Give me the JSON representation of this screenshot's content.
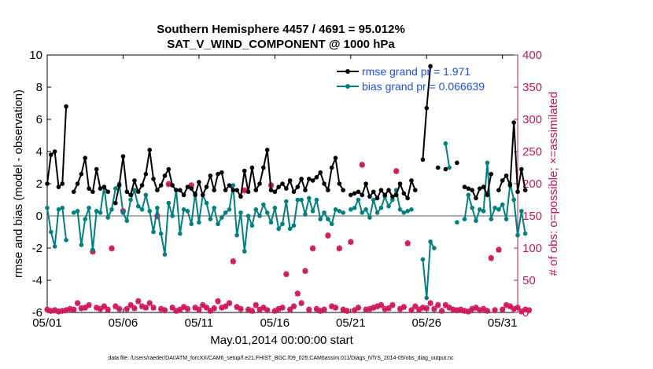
{
  "chart_data": {
    "type": "line",
    "title_line1": "Southern Hemisphere 4457 / 4691 = 95.012%",
    "title_line2": "SAT_V_WIND_COMPONENT @ 1000 hPa",
    "xlabel": "May.01,2014 00:00:00 start",
    "ylabel_left": "rmse and bias (model - observation)",
    "ylabel_right": "# of obs: o=possible; ×=assimilated",
    "footer": "data file: /Users/raeder/DAI/ATM_forcXX/CAM6_setup/f.e21.FHIST_BGC.f09_025.CAM6assim.011/Diags_NTrS_2014-05/obs_diag_output.nc",
    "xlim": [
      1,
      32
    ],
    "ylim_left": [
      -6,
      10
    ],
    "ylim_right": [
      0,
      400
    ],
    "x_ticks": [
      1,
      6,
      11,
      16,
      21,
      26,
      31
    ],
    "x_tick_labels": [
      "05/01",
      "05/06",
      "05/11",
      "05/16",
      "05/21",
      "05/26",
      "05/31"
    ],
    "y_left_ticks": [
      -6,
      -4,
      -2,
      0,
      2,
      4,
      6,
      8,
      10
    ],
    "y_right_ticks": [
      0,
      50,
      100,
      150,
      200,
      250,
      300,
      350,
      400
    ],
    "legend": [
      {
        "name": "rmse",
        "label": "rmse grand pr = 1.971"
      },
      {
        "name": "bias",
        "label": "bias grand pr = 0.066639"
      }
    ],
    "colors": {
      "rmse": "#000000",
      "bias": "#00807f",
      "obs": "#d01a5c",
      "zero": "#b0b0b0",
      "right_axis": "#c8175a"
    },
    "x_start": 1,
    "x_step": 0.25,
    "series": [
      {
        "name": "rmse",
        "axis": "left",
        "values": [
          2.0,
          3.8,
          4.0,
          1.8,
          2.0,
          6.8,
          null,
          1.5,
          2.0,
          2.6,
          3.6,
          1.7,
          1.5,
          2.9,
          1.7,
          1.8,
          1.5,
          null,
          0.8,
          1.9,
          3.7,
          1.5,
          1.3,
          2.2,
          1.5,
          1.9,
          2.6,
          4.1,
          2.3,
          1.6,
          1.9,
          2.5,
          2.9,
          1.9,
          1.6,
          1.6,
          1.3,
          1.8,
          1.7,
          1.3,
          2.1,
          1.3,
          1.8,
          2.5,
          1.6,
          2.6,
          2.7,
          1.6,
          1.9,
          1.6,
          1.6,
          1.2,
          2.8,
          1.5,
          3.0,
          1.6,
          2.0,
          3.0,
          4.1,
          1.6,
          1.5,
          1.8,
          2.0,
          1.7,
          2.2,
          1.5,
          1.8,
          2.3,
          1.6,
          2.3,
          2.2,
          2.4,
          2.7,
          2.0,
          1.6,
          3.0,
          3.6,
          2.0,
          1.6,
          null,
          1.3,
          1.4,
          1.5,
          1.3,
          2.0,
          1.2,
          1.5,
          1.1,
          1.6,
          1.3,
          1.6,
          1.2,
          1.3,
          2.0,
          1.4,
          1.1,
          2.2,
          1.6,
          null,
          3.5,
          6.7,
          9.3,
          null,
          3.0,
          null,
          2.9,
          null,
          null,
          3.3,
          null,
          1.8,
          1.7,
          1.6,
          1.1,
          1.7,
          1.8,
          1.3,
          2.6,
          null,
          1.6,
          2.2,
          2.5,
          1.9,
          5.8,
          1.5,
          2.9,
          1.6
        ]
      },
      {
        "name": "bias",
        "axis": "left",
        "values": [
          0.5,
          -1.0,
          -1.9,
          0.4,
          0.5,
          -1.5,
          null,
          0.2,
          0.3,
          -1.8,
          -0.2,
          0.5,
          -2.1,
          0.3,
          0.2,
          1.8,
          -0.1,
          0.4,
          1.7,
          2.0,
          0.2,
          -0.3,
          1.0,
          1.6,
          0.6,
          0.4,
          1.3,
          0.3,
          -1.0,
          0.5,
          -1.1,
          -2.4,
          0.8,
          0.0,
          1.6,
          -1.1,
          0.4,
          0.3,
          -0.5,
          1.4,
          -0.4,
          1.3,
          0.8,
          -0.2,
          0.5,
          -0.5,
          -0.1,
          0.2,
          0.4,
          1.9,
          -1.2,
          0.2,
          -2.2,
          0.0,
          -0.6,
          0.4,
          0.0,
          0.7,
          0.2,
          -0.4,
          0.5,
          -0.8,
          -0.5,
          0.9,
          -0.8,
          -0.6,
          1.0,
          1.0,
          0.1,
          1.1,
          0.3,
          1.0,
          -0.2,
          0.2,
          -0.2,
          -0.5,
          0.4,
          0.3,
          0.2,
          null,
          0.4,
          0.5,
          1.0,
          0.2,
          0.4,
          -0.1,
          1.0,
          0.2,
          0.5,
          1.2,
          0.6,
          1.0,
          1.6,
          0.4,
          0.2,
          0.3,
          0.4,
          null,
          null,
          -2.7,
          -5.1,
          -1.6,
          -2.0,
          null,
          null,
          4.5,
          3.0,
          null,
          -0.4,
          null,
          -0.2,
          1.3,
          0.5,
          -0.3,
          0.4,
          0.3,
          3.3,
          -0.2,
          0.5,
          0.4,
          0.7,
          -0.2,
          2.0,
          1.0,
          -1.2,
          0.3,
          -1.1
        ]
      },
      {
        "name": "possible",
        "axis": "right",
        "values": [
          5,
          3,
          4,
          2,
          3,
          4,
          6,
          5,
          15,
          7,
          8,
          12,
          95,
          8,
          6,
          10,
          5,
          100,
          10,
          6,
          158,
          6,
          12,
          7,
          18,
          10,
          8,
          15,
          8,
          150,
          6,
          4,
          200,
          8,
          3,
          5,
          9,
          6,
          198,
          8,
          5,
          12,
          8,
          3,
          7,
          18,
          8,
          10,
          15,
          80,
          9,
          6,
          190,
          5,
          3,
          12,
          5,
          8,
          4,
          198,
          3,
          6,
          8,
          60,
          5,
          10,
          30,
          15,
          65,
          5,
          100,
          6,
          3,
          5,
          120,
          10,
          8,
          100,
          5,
          3,
          110,
          4,
          8,
          230,
          5,
          6,
          8,
          10,
          12,
          6,
          7,
          12,
          220,
          6,
          9,
          108,
          4,
          10,
          5,
          8,
          7,
          15,
          6,
          12,
          3,
          12,
          8,
          5,
          4,
          5,
          3,
          2,
          6,
          8,
          4,
          6,
          3,
          85,
          4,
          98,
          5,
          12,
          10,
          6,
          8,
          2,
          5,
          4
        ]
      },
      {
        "name": "assimilated",
        "axis": "right",
        "values": [
          4,
          2,
          3,
          1,
          2,
          3,
          5,
          4,
          14,
          6,
          7,
          11,
          94,
          7,
          5,
          9,
          4,
          99,
          9,
          5,
          157,
          5,
          11,
          6,
          17,
          9,
          7,
          14,
          7,
          149,
          5,
          3,
          199,
          7,
          2,
          4,
          8,
          5,
          197,
          7,
          4,
          11,
          7,
          2,
          6,
          17,
          7,
          9,
          14,
          79,
          8,
          5,
          189,
          4,
          2,
          11,
          4,
          7,
          3,
          197,
          2,
          5,
          7,
          59,
          4,
          9,
          29,
          14,
          64,
          4,
          99,
          5,
          2,
          4,
          119,
          9,
          7,
          99,
          4,
          2,
          109,
          3,
          7,
          229,
          4,
          5,
          7,
          9,
          11,
          5,
          6,
          11,
          219,
          5,
          8,
          107,
          3,
          9,
          4,
          7,
          6,
          14,
          5,
          11,
          2,
          11,
          7,
          4,
          3,
          4,
          2,
          1,
          5,
          7,
          3,
          5,
          2,
          84,
          3,
          97,
          4,
          11,
          9,
          5,
          7,
          1,
          4,
          3
        ]
      }
    ]
  }
}
